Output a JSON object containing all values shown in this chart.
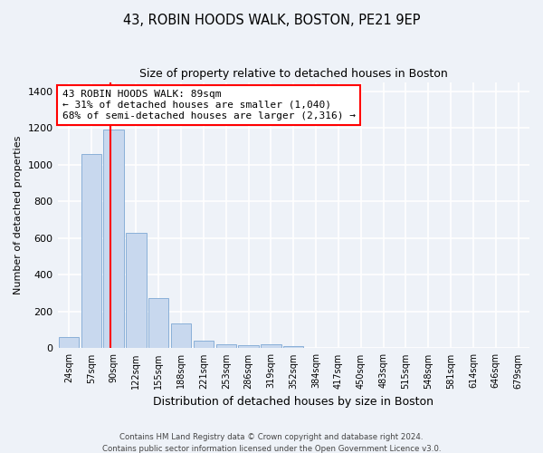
{
  "title1": "43, ROBIN HOODS WALK, BOSTON, PE21 9EP",
  "title2": "Size of property relative to detached houses in Boston",
  "xlabel": "Distribution of detached houses by size in Boston",
  "ylabel": "Number of detached properties",
  "categories": [
    "24sqm",
    "57sqm",
    "90sqm",
    "122sqm",
    "155sqm",
    "188sqm",
    "221sqm",
    "253sqm",
    "286sqm",
    "319sqm",
    "352sqm",
    "384sqm",
    "417sqm",
    "450sqm",
    "483sqm",
    "515sqm",
    "548sqm",
    "581sqm",
    "614sqm",
    "646sqm",
    "679sqm"
  ],
  "values": [
    60,
    1060,
    1190,
    630,
    275,
    135,
    40,
    20,
    15,
    20,
    10,
    0,
    0,
    0,
    0,
    0,
    0,
    0,
    0,
    0,
    0
  ],
  "bar_color": "#c8d8ee",
  "bar_edgecolor": "#8ab0d8",
  "red_line_x": 1.85,
  "ylim": [
    0,
    1450
  ],
  "yticks": [
    0,
    200,
    400,
    600,
    800,
    1000,
    1200,
    1400
  ],
  "footer1": "Contains HM Land Registry data © Crown copyright and database right 2024.",
  "footer2": "Contains public sector information licensed under the Open Government Licence v3.0.",
  "bg_color": "#eef2f8",
  "plot_bg_color": "#eef2f8",
  "grid_color": "white",
  "annotation_line1": "43 ROBIN HOODS WALK: 89sqm",
  "annotation_line2": "← 31% of detached houses are smaller (1,040)",
  "annotation_line3": "68% of semi-detached houses are larger (2,316) →"
}
